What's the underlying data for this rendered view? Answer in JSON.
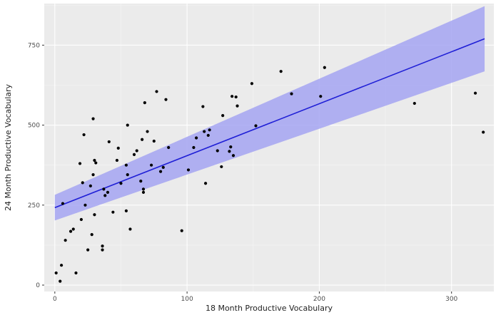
{
  "chart_data": {
    "type": "scatter",
    "xlabel": "18 Month Productive Vocabulary",
    "ylabel": "24 Month Productive Vocabulary",
    "xlim": [
      -8,
      332
    ],
    "ylim": [
      -20,
      880
    ],
    "x_ticks": [
      0,
      100,
      200,
      300
    ],
    "y_ticks": [
      0,
      250,
      500,
      750
    ],
    "grid": true,
    "points": [
      [
        1,
        38
      ],
      [
        4,
        12
      ],
      [
        5,
        62
      ],
      [
        6,
        255
      ],
      [
        8,
        140
      ],
      [
        12,
        168
      ],
      [
        14,
        175
      ],
      [
        16,
        38
      ],
      [
        19,
        380
      ],
      [
        20,
        205
      ],
      [
        21,
        320
      ],
      [
        22,
        470
      ],
      [
        23,
        250
      ],
      [
        25,
        110
      ],
      [
        27,
        310
      ],
      [
        28,
        158
      ],
      [
        29,
        345
      ],
      [
        29,
        520
      ],
      [
        30,
        390
      ],
      [
        30,
        220
      ],
      [
        31,
        382
      ],
      [
        36,
        110
      ],
      [
        36,
        122
      ],
      [
        37,
        300
      ],
      [
        38,
        280
      ],
      [
        40,
        290
      ],
      [
        41,
        448
      ],
      [
        44,
        228
      ],
      [
        47,
        390
      ],
      [
        48,
        428
      ],
      [
        50,
        318
      ],
      [
        54,
        232
      ],
      [
        54,
        375
      ],
      [
        55,
        345
      ],
      [
        55,
        500
      ],
      [
        57,
        175
      ],
      [
        60,
        408
      ],
      [
        62,
        420
      ],
      [
        65,
        325
      ],
      [
        66,
        455
      ],
      [
        67,
        300
      ],
      [
        67,
        290
      ],
      [
        68,
        570
      ],
      [
        70,
        480
      ],
      [
        73,
        375
      ],
      [
        75,
        450
      ],
      [
        77,
        605
      ],
      [
        80,
        355
      ],
      [
        82,
        368
      ],
      [
        84,
        580
      ],
      [
        86,
        430
      ],
      [
        96,
        170
      ],
      [
        101,
        360
      ],
      [
        105,
        430
      ],
      [
        107,
        460
      ],
      [
        112,
        558
      ],
      [
        113,
        480
      ],
      [
        114,
        318
      ],
      [
        116,
        468
      ],
      [
        117,
        485
      ],
      [
        123,
        420
      ],
      [
        126,
        370
      ],
      [
        127,
        530
      ],
      [
        132,
        418
      ],
      [
        133,
        432
      ],
      [
        134,
        590
      ],
      [
        135,
        405
      ],
      [
        137,
        588
      ],
      [
        138,
        560
      ],
      [
        149,
        630
      ],
      [
        152,
        498
      ],
      [
        171,
        668
      ],
      [
        179,
        598
      ],
      [
        201,
        590
      ],
      [
        204,
        680
      ],
      [
        272,
        568
      ],
      [
        318,
        600
      ],
      [
        324,
        478
      ]
    ],
    "fit": {
      "x": [
        0,
        325
      ],
      "y": [
        242,
        770
      ],
      "ci_lower": [
        202,
        668
      ],
      "ci_upper": [
        282,
        872
      ]
    },
    "colors": {
      "panel": "#ebebeb",
      "grid_major": "#ffffff",
      "grid_minor": "#f5f5f5",
      "points": "#000000",
      "fit_line": "#1f1fd6",
      "ci_band": "#a5a5f2"
    }
  }
}
